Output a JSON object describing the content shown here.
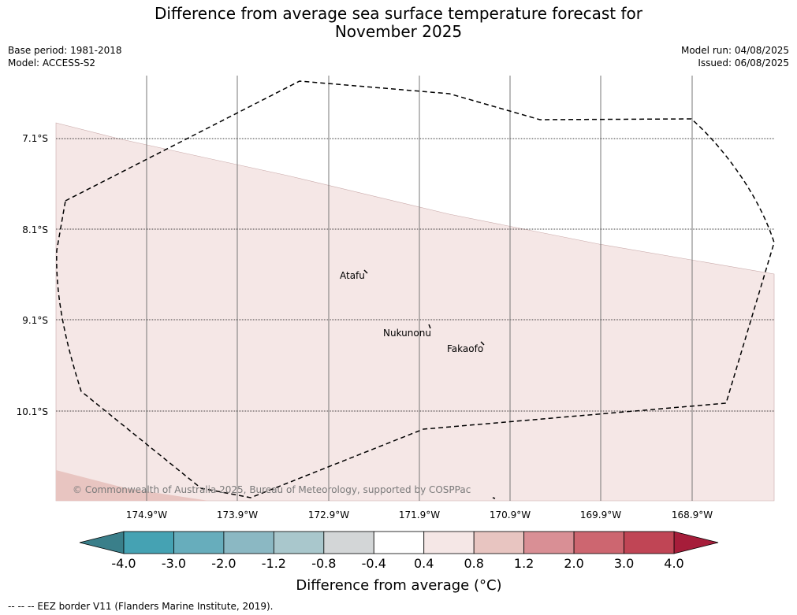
{
  "title_line1": "Difference from average sea surface temperature forecast for",
  "title_line2": "November 2025",
  "base_period": "Base period: 1981-2018",
  "model": "Model: ACCESS-S2",
  "model_run": "Model run: 04/08/2025",
  "issued": "Issued: 06/08/2025",
  "lat_labels": [
    "7.1°S",
    "8.1°S",
    "9.1°S",
    "10.1°S"
  ],
  "lon_labels": [
    "174.9°W",
    "173.9°W",
    "172.9°W",
    "171.9°W",
    "170.9°W",
    "169.9°W",
    "168.9°W"
  ],
  "places": {
    "atafu": "Atafu",
    "nukunonu": "Nukunonu",
    "fakaofo": "Fakaofo"
  },
  "copyright": "© Commonwealth of Australia 2025, Bureau of Meteorology, supported by COSPPac",
  "colorbar": {
    "ticks": [
      "-4.0",
      "-3.0",
      "-2.0",
      "-1.2",
      "-0.8",
      "-0.4",
      "0.4",
      "0.8",
      "1.2",
      "2.0",
      "3.0",
      "4.0"
    ],
    "colors": [
      "#45a2b3",
      "#67adbc",
      "#8bb8c3",
      "#a9c7cc",
      "#d3d6d7",
      "#ffffff",
      "#f5e7e6",
      "#e8c5c1",
      "#d98f95",
      "#cd6670",
      "#c04555"
    ],
    "under_color": "#3a7f8a",
    "over_color": "#a61d3a",
    "label": "Difference from average (°C)"
  },
  "map_colors": {
    "band_0p4_0p8": "#f5e7e6",
    "band_0p8_1p2": "#e8c5c1"
  },
  "footer": "--  --  -- EEZ border V11 (Flanders Marine Institute, 2019)."
}
